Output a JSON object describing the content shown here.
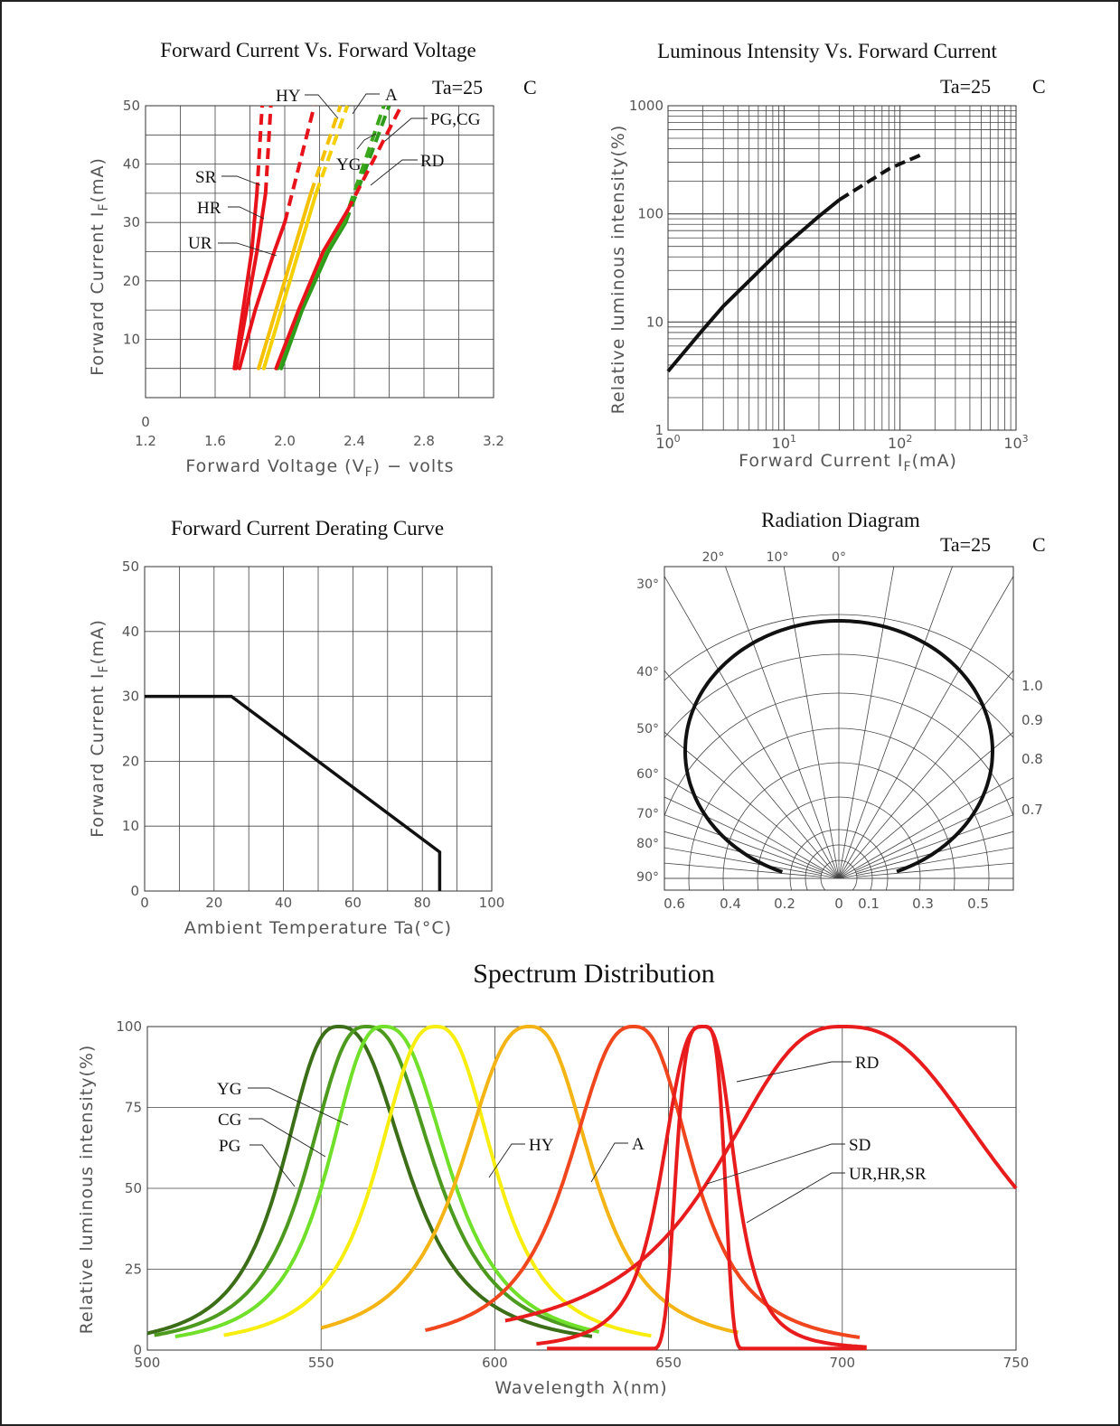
{
  "chart_data": [
    {
      "id": "fv",
      "type": "line",
      "title": "Forward Current Vs. Forward Voltage",
      "condition": {
        "label": "Ta=25",
        "unit": "C"
      },
      "xlabel": "Forward Voltage (VF) - volts",
      "ylabel": "Forward Current IF(mA)",
      "xlim": [
        1.2,
        3.2
      ],
      "ylim": [
        0,
        50
      ],
      "xticks": [
        "1.2",
        "1.6",
        "2.0",
        "2.4",
        "2.8",
        "3.2"
      ],
      "yticks": [
        "0",
        "10",
        "20",
        "30",
        "40",
        "50"
      ],
      "grid": true,
      "series": [
        {
          "name": "SR",
          "color": "#e8121a",
          "solid": [
            [
              1.71,
              5
            ],
            [
              1.76,
              15
            ],
            [
              1.81,
              25
            ],
            [
              1.84,
              35
            ]
          ],
          "dashed": [
            [
              1.84,
              35
            ],
            [
              1.87,
              50
            ]
          ]
        },
        {
          "name": "HR",
          "color": "#e8121a",
          "solid": [
            [
              1.72,
              5
            ],
            [
              1.78,
              15
            ],
            [
              1.84,
              25
            ],
            [
              1.89,
              35
            ]
          ],
          "dashed": [
            [
              1.89,
              35
            ],
            [
              1.92,
              50
            ]
          ]
        },
        {
          "name": "UR",
          "color": "#e8121a",
          "solid": [
            [
              1.74,
              5
            ],
            [
              1.83,
              15
            ],
            [
              1.94,
              25
            ],
            [
              2.0,
              30
            ]
          ],
          "dashed": [
            [
              2.0,
              30
            ],
            [
              2.17,
              50
            ]
          ]
        },
        {
          "name": "HY",
          "color": "#f5c000",
          "solid": [
            [
              1.85,
              5
            ],
            [
              1.95,
              15
            ],
            [
              2.05,
              25
            ],
            [
              2.15,
              35
            ]
          ],
          "dashed": [
            [
              2.15,
              35
            ],
            [
              2.32,
              50
            ]
          ]
        },
        {
          "name": "A",
          "color": "#f5d000",
          "solid": [
            [
              1.88,
              5
            ],
            [
              1.98,
              15
            ],
            [
              2.08,
              25
            ],
            [
              2.18,
              35
            ]
          ],
          "dashed": [
            [
              2.18,
              35
            ],
            [
              2.36,
              50
            ]
          ]
        },
        {
          "name": "PG,CG",
          "color": "#2e9a1a",
          "solid": [
            [
              1.98,
              5
            ],
            [
              2.1,
              15
            ],
            [
              2.25,
              25
            ],
            [
              2.35,
              30
            ]
          ],
          "dashed": [
            [
              2.35,
              30
            ],
            [
              2.6,
              50
            ]
          ]
        },
        {
          "name": "YG",
          "color": "#3aa81a",
          "solid": [
            [
              1.96,
              5
            ],
            [
              2.08,
              15
            ],
            [
              2.23,
              25
            ],
            [
              2.34,
              30
            ]
          ],
          "dashed": [
            [
              2.34,
              30
            ],
            [
              2.57,
              50
            ]
          ]
        },
        {
          "name": "RD",
          "color": "#e8121a",
          "solid": [
            [
              1.95,
              5
            ],
            [
              2.08,
              15
            ],
            [
              2.22,
              25
            ],
            [
              2.36,
              32
            ]
          ],
          "dashed": [
            [
              2.36,
              32
            ],
            [
              2.67,
              50
            ]
          ]
        }
      ]
    },
    {
      "id": "lum",
      "type": "line",
      "title": "Luminous Intensity Vs. Forward Current",
      "condition": {
        "label": "Ta=25",
        "unit": "C"
      },
      "xlabel": "Forward Current IF(mA)",
      "ylabel": "Relative luminous intensity(%)",
      "xscale": "log",
      "yscale": "log",
      "xlim": [
        1,
        1000
      ],
      "ylim": [
        1,
        1000
      ],
      "xticks": [
        {
          "base": "10",
          "exp": "0"
        },
        {
          "base": "10",
          "exp": "1"
        },
        {
          "base": "10",
          "exp": "2"
        },
        {
          "base": "10",
          "exp": "3"
        }
      ],
      "yticks": [
        "1",
        "10",
        "100",
        "1000"
      ],
      "grid": true,
      "series": [
        {
          "color": "#111111",
          "solid": [
            [
              1,
              3.5
            ],
            [
              2,
              8.5
            ],
            [
              3,
              14
            ],
            [
              5,
              24
            ],
            [
              10,
              50
            ],
            [
              20,
              95
            ],
            [
              30,
              135
            ]
          ],
          "dashed": [
            [
              30,
              135
            ],
            [
              50,
              190
            ],
            [
              80,
              260
            ],
            [
              100,
              290
            ],
            [
              150,
              350
            ]
          ]
        }
      ]
    },
    {
      "id": "derating",
      "type": "line",
      "title": "Forward Current Derating Curve",
      "xlabel": "Ambient Temperature Ta(°C)",
      "ylabel": "Forward Current IF(mA)",
      "xlim": [
        0,
        100
      ],
      "ylim": [
        0,
        50
      ],
      "xticks": [
        "0",
        "20",
        "40",
        "60",
        "80",
        "100"
      ],
      "yticks": [
        "0",
        "10",
        "20",
        "30",
        "40",
        "50"
      ],
      "grid": true,
      "series": [
        {
          "color": "#111111",
          "solid": [
            [
              0,
              30
            ],
            [
              25,
              30
            ],
            [
              85,
              6
            ],
            [
              85,
              0
            ]
          ]
        }
      ]
    },
    {
      "id": "radiation",
      "type": "line",
      "title": "Radiation Diagram",
      "condition": {
        "label": "Ta=25",
        "unit": "C"
      },
      "top_angle_labels": [
        "20°",
        "10°",
        "0°"
      ],
      "left_angle_labels": [
        "30°",
        "40°",
        "50°",
        "60°",
        "70°",
        "80°",
        "90°"
      ],
      "right_labels": [
        "1.0",
        "0.9",
        "0.8",
        "0.7"
      ],
      "bottom_labels": [
        "0.6",
        "0.4",
        "0.2",
        "0",
        "0.1",
        "0.3",
        "0.5"
      ]
    },
    {
      "id": "spectrum",
      "type": "line",
      "title": "Spectrum Distribution",
      "xlabel": "Wavelength λ(nm)",
      "ylabel": "Relative luminous intensity(%)",
      "xlim": [
        500,
        750
      ],
      "ylim": [
        0,
        100
      ],
      "xticks": [
        "500",
        "550",
        "600",
        "650",
        "700",
        "750"
      ],
      "yticks": [
        "0",
        "25",
        "50",
        "75",
        "100"
      ],
      "grid": true,
      "series": [
        {
          "name": "PG",
          "color": "#3b6e17",
          "peak": 555,
          "left": 18,
          "right": 22,
          "range": [
            500,
            628
          ]
        },
        {
          "name": "CG",
          "color": "#4c9a1e",
          "peak": 563,
          "left": 19,
          "right": 22,
          "range": [
            502,
            626
          ]
        },
        {
          "name": "YG",
          "color": "#70e02a",
          "peak": 568,
          "left": 18,
          "right": 21,
          "range": [
            508,
            630
          ]
        },
        {
          "name": "HY",
          "color": "#f7ee10",
          "peak": 583,
          "left": 19,
          "right": 19,
          "range": [
            522,
            645
          ]
        },
        {
          "name": "A",
          "color": "#f4b415",
          "peak": 610,
          "left": 22,
          "right": 20,
          "range": [
            550,
            670
          ]
        },
        {
          "name": "",
          "color": "#f0461e",
          "peak": 640,
          "left": 21,
          "right": 19,
          "range": [
            580,
            705
          ]
        },
        {
          "name": "SD",
          "color": "#e81c1c",
          "peak": 660,
          "left": 10,
          "right": 8,
          "range": [
            615,
            707
          ]
        },
        {
          "name": "RD",
          "color": "#e81c1c",
          "peak": 700,
          "left": 40,
          "right": 50,
          "range": [
            603,
            750
          ]
        }
      ],
      "labels": [
        "YG",
        "CG",
        "PG",
        "HY",
        "A",
        "RD",
        "SD",
        "UR,HR,SR"
      ]
    }
  ]
}
